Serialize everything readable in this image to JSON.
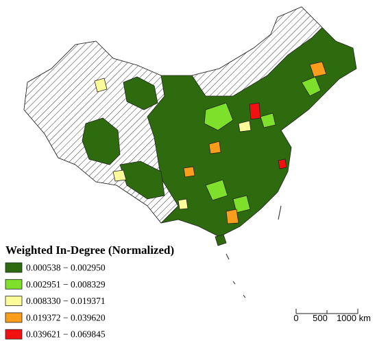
{
  "legend": {
    "title": "Weighted In-Degree (Normalized)",
    "items": [
      {
        "label": "0.000538 − 0.002950",
        "color": "#2e6b0e"
      },
      {
        "label": "0.002951 − 0.008329",
        "color": "#7ee02a"
      },
      {
        "label": "0.008330 − 0.019371",
        "color": "#fbfb9a"
      },
      {
        "label": "0.019372 − 0.039620",
        "color": "#fa9c1c"
      },
      {
        "label": "0.039621 − 0.069845",
        "color": "#f21010"
      }
    ]
  },
  "scale_bar": {
    "labels": [
      "0",
      "500",
      "1000 km"
    ]
  }
}
